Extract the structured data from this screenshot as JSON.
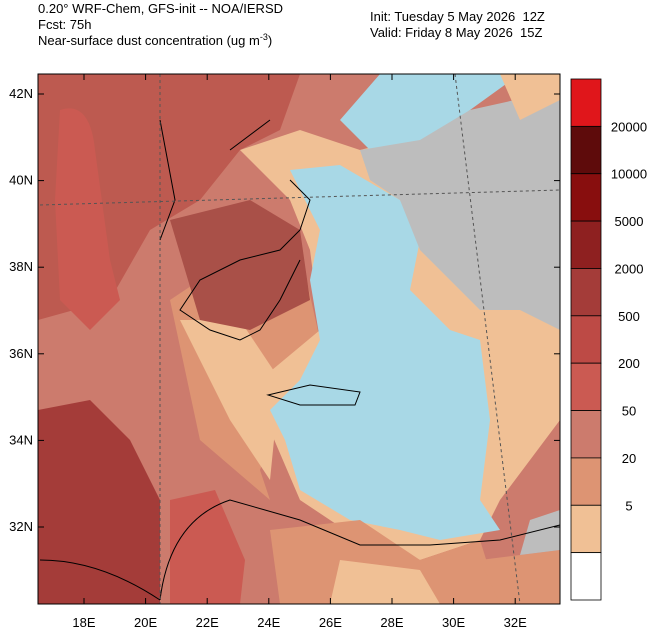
{
  "header": {
    "title": "0.20° WRF-Chem, GFS-init -- NOA/IERSD",
    "forecast": "Fcst: 75h",
    "variable": "Near-surface dust concentration (ug m",
    "variable_exponent": "-3",
    "variable_close": ")",
    "init": "Init: Tuesday 5 May 2026  12Z",
    "valid": "Valid: Friday 8 May 2026  15Z"
  },
  "map": {
    "lat_labels": [
      "42N",
      "40N",
      "38N",
      "36N",
      "34N",
      "32N"
    ],
    "lon_labels": [
      "18E",
      "20E",
      "22E",
      "24E",
      "26E",
      "28E",
      "30E",
      "32E"
    ]
  },
  "colorbar": {
    "labels": [
      "20000",
      "10000",
      "5000",
      "2000",
      "500",
      "200",
      "50",
      "20",
      "5"
    ],
    "colors": [
      "#e0161b",
      "#5e0b0b",
      "#880e0e",
      "#8e2020",
      "#a43c39",
      "#bd4a45",
      "#cb5a52",
      "#cc7b6d",
      "#dd9473",
      "#f0c095",
      "#ffffff"
    ]
  }
}
